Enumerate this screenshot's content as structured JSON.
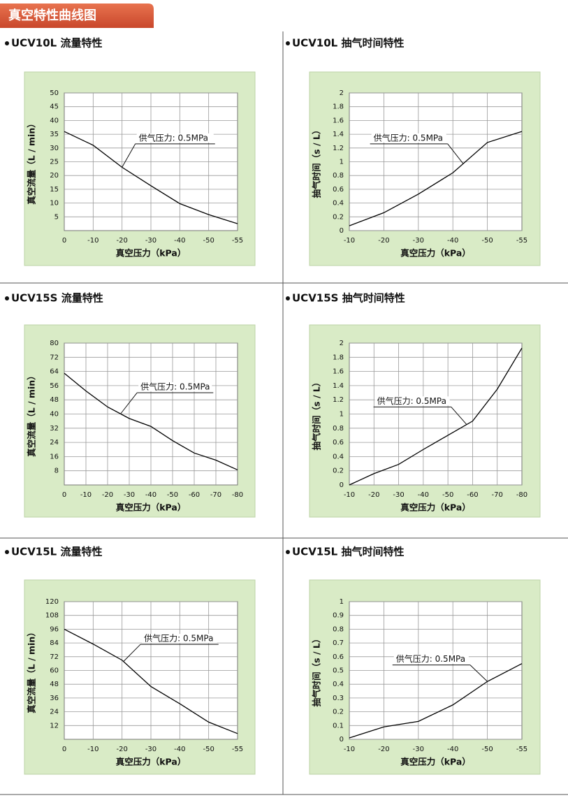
{
  "header": {
    "title": "真空特性曲线图"
  },
  "chart_data": [
    {
      "type": "line",
      "title": "UCV10L 流量特性",
      "xlabel": "真空压力（kPa）",
      "ylabel": "真空流量（L / min）",
      "annotation": "供气压力: 0.5MPa",
      "categories": [
        "0",
        "-10",
        "-20",
        "-30",
        "-40",
        "-50",
        "-55"
      ],
      "series": [
        {
          "name": "供气压力: 0.5MPa",
          "color": "#000000",
          "values": [
            36,
            31,
            23,
            16.3,
            9.8,
            5.8,
            2.5
          ]
        }
      ],
      "ylim": [
        0,
        50
      ],
      "yticks": [
        5,
        10,
        15,
        20,
        25,
        30,
        35,
        40,
        45,
        50
      ],
      "grid": true
    },
    {
      "type": "line",
      "title": "UCV10L 抽气时间特性",
      "xlabel": "真空压力（kPa）",
      "ylabel": "抽气时间（s / L）",
      "annotation": "供气压力: 0.5MPa",
      "categories": [
        "-10",
        "-20",
        "-30",
        "-40",
        "-50",
        "-55"
      ],
      "series": [
        {
          "name": "供气压力: 0.5MPa",
          "color": "#000000",
          "values": [
            0.07,
            0.26,
            0.53,
            0.84,
            1.28,
            1.44
          ]
        }
      ],
      "ylim": [
        0,
        2
      ],
      "yticks": [
        0,
        0.2,
        0.4,
        0.6,
        0.8,
        1,
        1.2,
        1.4,
        1.6,
        1.8,
        2
      ],
      "grid": true
    },
    {
      "type": "line",
      "title": "UCV15S 流量特性",
      "xlabel": "真空压力（kPa）",
      "ylabel": "真空流量（L / min）",
      "annotation": "供气压力: 0.5MPa",
      "categories": [
        "0",
        "-10",
        "-20",
        "-30",
        "-40",
        "-50",
        "-60",
        "-70",
        "-80"
      ],
      "series": [
        {
          "name": "供气压力: 0.5MPa",
          "color": "#000000",
          "values": [
            63,
            53,
            44,
            37.5,
            33,
            25,
            18,
            14,
            8.5
          ]
        }
      ],
      "ylim": [
        0,
        80
      ],
      "yticks": [
        8,
        16,
        24,
        32,
        40,
        48,
        56,
        64,
        72,
        80
      ],
      "grid": true
    },
    {
      "type": "line",
      "title": "UCV15S 抽气时间特性",
      "xlabel": "真空压力（kPa）",
      "ylabel": "抽气时间（s / L）",
      "annotation": "供气压力: 0.5MPa",
      "categories": [
        "-10",
        "-20",
        "-30",
        "-40",
        "-50",
        "-60",
        "-70",
        "-80"
      ],
      "series": [
        {
          "name": "供气压力: 0.5MPa",
          "color": "#000000",
          "values": [
            0,
            0.16,
            0.29,
            0.5,
            0.7,
            0.9,
            1.35,
            1.93
          ]
        }
      ],
      "ylim": [
        0,
        2
      ],
      "yticks": [
        0,
        0.2,
        0.4,
        0.6,
        0.8,
        1,
        1.2,
        1.4,
        1.6,
        1.8,
        2
      ],
      "grid": true
    },
    {
      "type": "line",
      "title": "UCV15L 流量特性",
      "xlabel": "真空压力（kPa）",
      "ylabel": "真空流量（L / min）",
      "annotation": "供气压力: 0.5MPa",
      "categories": [
        "0",
        "-10",
        "-20",
        "-30",
        "-40",
        "-50",
        "-55"
      ],
      "series": [
        {
          "name": "供气压力: 0.5MPa",
          "color": "#000000",
          "values": [
            96,
            83,
            69,
            46,
            31,
            15,
            5
          ]
        }
      ],
      "ylim": [
        0,
        120
      ],
      "yticks": [
        12,
        24,
        36,
        48,
        60,
        72,
        84,
        96,
        108,
        120
      ],
      "grid": true
    },
    {
      "type": "line",
      "title": "UCV15L 抽气时间特性",
      "xlabel": "真空压力（kPa）",
      "ylabel": "抽气时间（s / L）",
      "annotation": "供气压力: 0.5MPa",
      "categories": [
        "-10",
        "-20",
        "-30",
        "-40",
        "-50",
        "-55"
      ],
      "series": [
        {
          "name": "供气压力: 0.5MPa",
          "color": "#000000",
          "values": [
            0.01,
            0.09,
            0.13,
            0.25,
            0.42,
            0.55
          ]
        }
      ],
      "ylim": [
        0,
        1
      ],
      "yticks": [
        0,
        0.1,
        0.2,
        0.3,
        0.4,
        0.5,
        0.6,
        0.7,
        0.8,
        0.9,
        1
      ],
      "grid": true
    }
  ]
}
